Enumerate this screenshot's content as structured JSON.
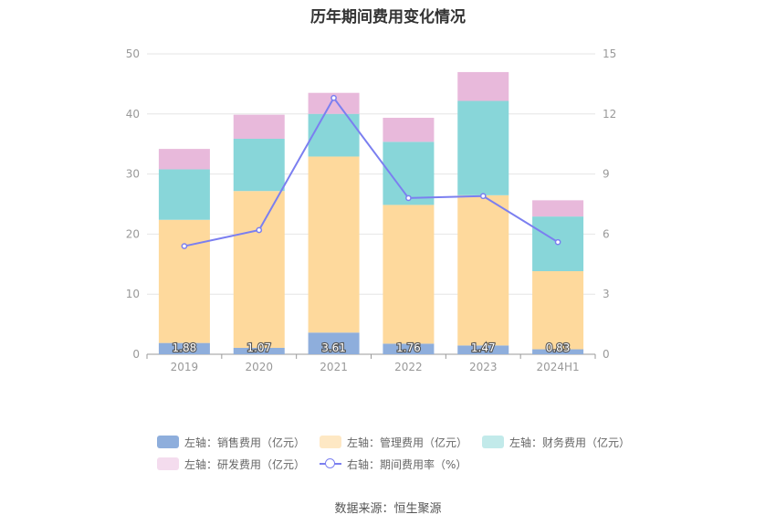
{
  "chart_data": {
    "type": "bar",
    "title": "历年期间费用变化情况",
    "categories": [
      "2019",
      "2020",
      "2021",
      "2022",
      "2023",
      "2024H1"
    ],
    "left_axis": {
      "min": 0,
      "max": 50,
      "ticks": [
        "0",
        "10",
        "20",
        "30",
        "40",
        "50"
      ]
    },
    "right_axis": {
      "min": 0,
      "max": 15,
      "ticks": [
        "0",
        "3",
        "6",
        "9",
        "12",
        "15"
      ]
    },
    "series": [
      {
        "name": "左轴：销售费用（亿元）",
        "color": "#8eaedc",
        "axis": "left",
        "type": "bar",
        "values": [
          1.88,
          1.07,
          3.61,
          1.76,
          1.47,
          0.83
        ],
        "labels": [
          "1.88",
          "1.07",
          "3.61",
          "1.76",
          "1.47",
          "0.83"
        ]
      },
      {
        "name": "左轴：管理费用（亿元）",
        "color": "#fed99c",
        "axis": "left",
        "type": "bar",
        "values": [
          20.5,
          26.1,
          29.3,
          23.1,
          25.0,
          13.0
        ]
      },
      {
        "name": "左轴：财务费用（亿元）",
        "color": "#88d6d9",
        "axis": "left",
        "type": "bar",
        "values": [
          8.4,
          8.7,
          7.1,
          10.5,
          15.7,
          9.1
        ]
      },
      {
        "name": "左轴：研发费用（亿元）",
        "color": "#e8b9db",
        "axis": "left",
        "type": "bar",
        "values": [
          3.4,
          4.0,
          3.5,
          4.0,
          4.8,
          2.7
        ]
      },
      {
        "name": "右轴：期间费用率（%）",
        "color": "#7b7ff0",
        "axis": "right",
        "type": "line",
        "values": [
          5.4,
          6.2,
          12.8,
          7.8,
          7.9,
          5.6
        ]
      }
    ],
    "legend_position": "bottom",
    "grid": true
  },
  "source": "数据来源：恒生聚源"
}
